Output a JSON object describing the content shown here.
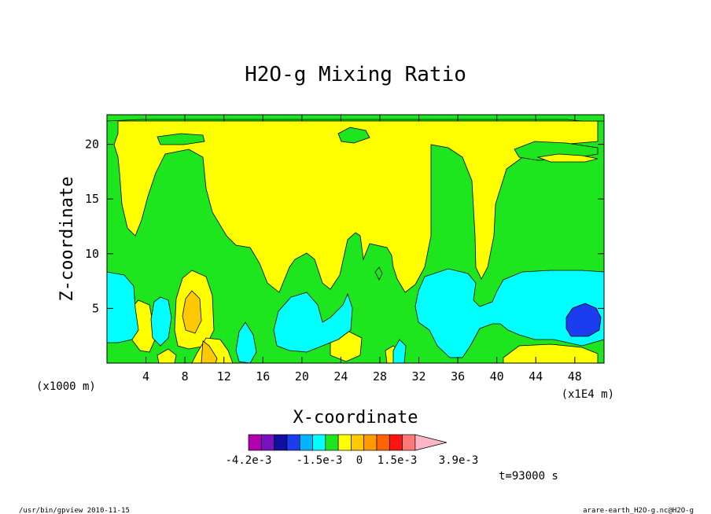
{
  "chart_data": {
    "type": "contour",
    "title": "H2O-g Mixing Ratio",
    "xlabel": "X-coordinate",
    "ylabel": "Z-coordinate",
    "x_unit_left": "(x1000 m)",
    "x_unit_right": "(x1E4 m)",
    "x_ticks": [
      4,
      8,
      12,
      16,
      20,
      24,
      28,
      32,
      36,
      40,
      44,
      48
    ],
    "y_ticks": [
      5,
      10,
      15,
      20
    ],
    "xlim": [
      0,
      51
    ],
    "ylim": [
      0,
      22.7
    ],
    "time_label": "t=93000 s",
    "colorbar": {
      "colors": [
        "#b000b0",
        "#7a10c0",
        "#1010a0",
        "#1c3cf0",
        "#00b4ff",
        "#00ffff",
        "#1ee61e",
        "#ffff00",
        "#ffc800",
        "#ff9a00",
        "#ff6400",
        "#ff1414",
        "#ff7878",
        "#ffb4c8"
      ],
      "tick_labels": [
        "-4.2e-3",
        "-1.5e-3",
        "0",
        "1.5e-3",
        "3.9e-3"
      ]
    }
  },
  "footer": {
    "left": "/usr/bin/gpview  2010-11-15",
    "right": "arare-earth_H2O-g.nc@H2O-g"
  }
}
